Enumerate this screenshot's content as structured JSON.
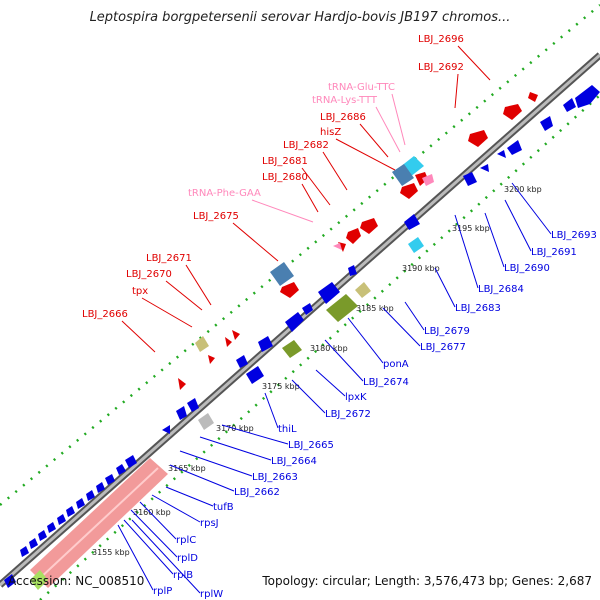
{
  "header": {
    "title": "Leptospira borgpetersenii serovar Hardjo-bovis JB197 chromos..."
  },
  "footer": {
    "accession": "Accession: NC_008510",
    "topology": "Topology: circular; Length: 3,576,473 bp; Genes: 2,687"
  },
  "colors": {
    "forward": "#e00000",
    "reverse": "#0000e0",
    "trna": "#ff88bb",
    "rrna_sky": "#33ccee",
    "steel": "#4a7fb0",
    "olive": "#7a9a2a",
    "khaki": "#c8c078",
    "pink_band": "#f08888",
    "grey_gene": "#bbbbbb"
  },
  "ticks": [
    "3155 kbp",
    "3160 kbp",
    "3165 kbp",
    "3170 kbp",
    "3175 kbp",
    "3180 kbp",
    "3185 kbp",
    "3190 kbp",
    "3195 kbp",
    "3200 kbp"
  ],
  "labels_top": [
    {
      "text": "LBJ_2696",
      "type": "gene"
    },
    {
      "text": "LBJ_2692",
      "type": "gene"
    },
    {
      "text": "tRNA-Glu-TTC",
      "type": "trna"
    },
    {
      "text": "tRNA-Lys-TTT",
      "type": "trna"
    },
    {
      "text": "LBJ_2686",
      "type": "gene"
    },
    {
      "text": "hisZ",
      "type": "gene"
    },
    {
      "text": "LBJ_2682",
      "type": "gene"
    },
    {
      "text": "LBJ_2681",
      "type": "gene"
    },
    {
      "text": "LBJ_2680",
      "type": "gene"
    },
    {
      "text": "tRNA-Phe-GAA",
      "type": "trna"
    },
    {
      "text": "LBJ_2675",
      "type": "gene"
    },
    {
      "text": "LBJ_2671",
      "type": "gene"
    },
    {
      "text": "LBJ_2670",
      "type": "gene"
    },
    {
      "text": "tpx",
      "type": "gene"
    },
    {
      "text": "LBJ_2666",
      "type": "gene"
    }
  ],
  "labels_bottom": [
    {
      "text": "LBJ_2693"
    },
    {
      "text": "LBJ_2691"
    },
    {
      "text": "LBJ_2690"
    },
    {
      "text": "LBJ_2684"
    },
    {
      "text": "LBJ_2683"
    },
    {
      "text": "LBJ_2679"
    },
    {
      "text": "LBJ_2677"
    },
    {
      "text": "ponA"
    },
    {
      "text": "LBJ_2674"
    },
    {
      "text": "lpxK"
    },
    {
      "text": "LBJ_2672"
    },
    {
      "text": "thiL"
    },
    {
      "text": "LBJ_2665"
    },
    {
      "text": "LBJ_2664"
    },
    {
      "text": "LBJ_2663"
    },
    {
      "text": "LBJ_2662"
    },
    {
      "text": "tufB"
    },
    {
      "text": "rpsJ"
    },
    {
      "text": "rplC"
    },
    {
      "text": "rplD"
    },
    {
      "text": "rplB"
    },
    {
      "text": "rplW"
    },
    {
      "text": "rplP"
    }
  ]
}
